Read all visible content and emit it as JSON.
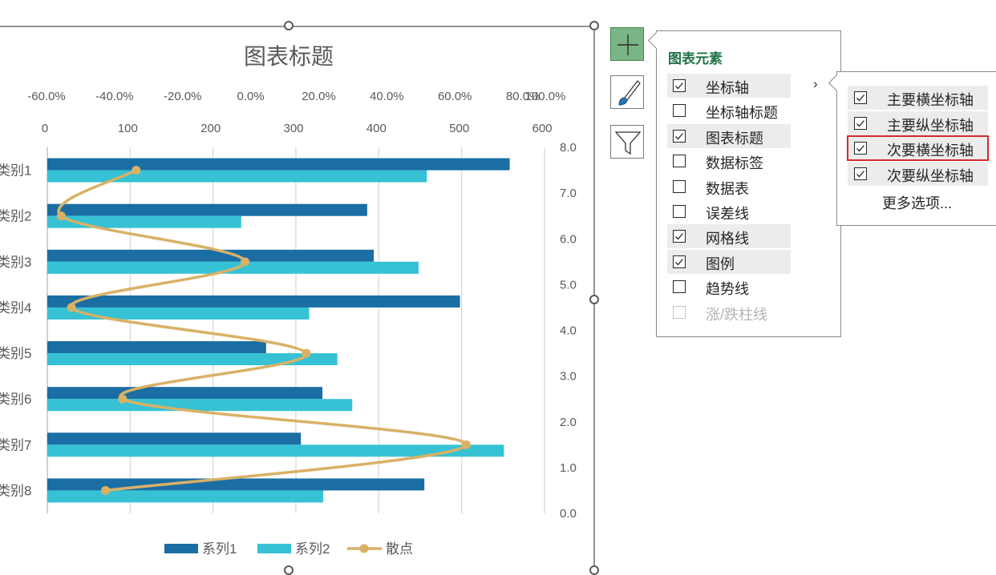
{
  "chart_data": {
    "type": "bar",
    "orientation": "horizontal",
    "title": "图表标题",
    "categories": [
      "类别1",
      "类别2",
      "类别3",
      "类别4",
      "类别5",
      "类别6",
      "类别7",
      "类别8"
    ],
    "series": [
      {
        "name": "系列1",
        "color": "#1a6ea3",
        "values": [
          558,
          386,
          394,
          498,
          264,
          332,
          306,
          455
        ]
      },
      {
        "name": "系列2",
        "color": "#36c2d4",
        "values": [
          458,
          234,
          448,
          316,
          350,
          368,
          551,
          333
        ]
      }
    ],
    "scatter": {
      "name": "散点",
      "color": "#d9b166",
      "x": [
        -20.0,
        -42.0,
        12.0,
        -39.0,
        30.0,
        -24.0,
        77.0,
        -29.0
      ],
      "y": [
        7.5,
        6.5,
        5.5,
        4.5,
        3.5,
        2.5,
        1.5,
        0.5
      ]
    },
    "primary_x_ticks": [
      "0",
      "100",
      "200",
      "300",
      "400",
      "500",
      "600"
    ],
    "secondary_x_ticks": [
      "-60.0%",
      "-40.0%",
      "-20.0%",
      "0.0%",
      "20.0%",
      "40.0%",
      "60.0%",
      "80.0%",
      "100.0%"
    ],
    "secondary_y_ticks": [
      "0.0",
      "1.0",
      "2.0",
      "3.0",
      "4.0",
      "5.0",
      "6.0",
      "7.0",
      "8.0"
    ],
    "xlim": [
      0,
      600
    ],
    "secondary_xlim": [
      -60,
      100
    ],
    "secondary_ylim": [
      0,
      8
    ],
    "grid": true,
    "legend": "bottom"
  },
  "side_buttons": [
    {
      "name": "chart-elements-button",
      "icon": "plus-icon",
      "active": true
    },
    {
      "name": "chart-styles-button",
      "icon": "paintbrush-icon",
      "active": false
    },
    {
      "name": "chart-filters-button",
      "icon": "funnel-icon",
      "active": false
    }
  ],
  "elements_panel": {
    "title": "图表元素",
    "items": [
      {
        "label": "坐标轴",
        "checked": true,
        "highlighted": true,
        "has_submenu": true
      },
      {
        "label": "坐标轴标题",
        "checked": false,
        "highlighted": false
      },
      {
        "label": "图表标题",
        "checked": true,
        "highlighted": true
      },
      {
        "label": "数据标签",
        "checked": false,
        "highlighted": false
      },
      {
        "label": "数据表",
        "checked": false,
        "highlighted": false
      },
      {
        "label": "误差线",
        "checked": false,
        "highlighted": false
      },
      {
        "label": "网格线",
        "checked": true,
        "highlighted": true
      },
      {
        "label": "图例",
        "checked": true,
        "highlighted": true
      },
      {
        "label": "趋势线",
        "checked": false,
        "highlighted": false
      },
      {
        "label": "涨/跌柱线",
        "checked": false,
        "highlighted": false,
        "disabled": true
      }
    ]
  },
  "axes_submenu": {
    "items": [
      {
        "label": "主要横坐标轴",
        "checked": true
      },
      {
        "label": "主要纵坐标轴",
        "checked": true
      },
      {
        "label": "次要横坐标轴",
        "checked": true,
        "outlined": true
      },
      {
        "label": "次要纵坐标轴",
        "checked": true
      }
    ],
    "more_options": "更多选项..."
  }
}
